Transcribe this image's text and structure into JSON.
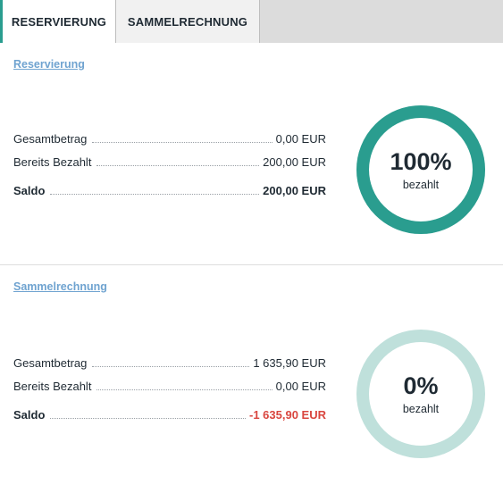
{
  "tabs": [
    {
      "label": "RESERVIERUNG",
      "active": true
    },
    {
      "label": "SAMMELRECHNUNG",
      "active": false
    }
  ],
  "reservierung": {
    "title": "Reservierung",
    "gesamtbetrag_label": "Gesamtbetrag",
    "gesamtbetrag_value": "0,00 EUR",
    "bezahlt_label": "Bereits Bezahlt",
    "bezahlt_value": "200,00 EUR",
    "saldo_label": "Saldo",
    "saldo_value": "200,00 EUR",
    "percent_label": "100%",
    "percent_value": 100,
    "status_text": "bezahlt"
  },
  "sammelrechnung": {
    "title": "Sammelrechnung",
    "gesamtbetrag_label": "Gesamtbetrag",
    "gesamtbetrag_value": "1 635,90 EUR",
    "bezahlt_label": "Bereits Bezahlt",
    "bezahlt_value": "0,00 EUR",
    "saldo_label": "Saldo",
    "saldo_value": "-1 635,90 EUR",
    "percent_label": "0%",
    "percent_value": 0,
    "status_text": "bezahlt"
  },
  "colors": {
    "accent": "#2a9d8f",
    "ring_track": "#bfe0db",
    "link": "#6fa3d0",
    "negative": "#d9463f"
  }
}
